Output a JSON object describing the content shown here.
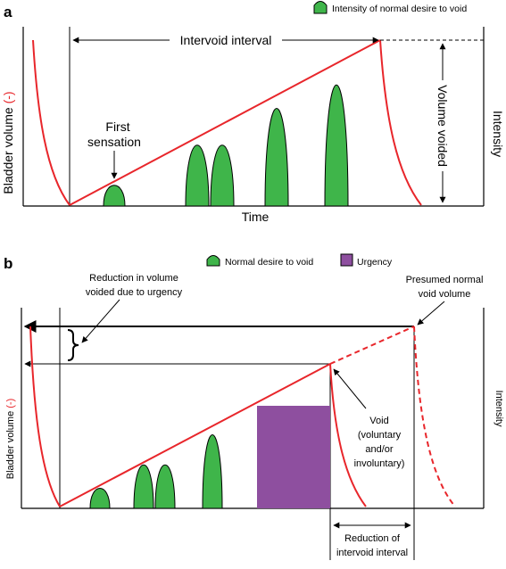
{
  "panel_a": {
    "letter": "a",
    "legend_label": "Intensity of normal desire to void",
    "y_axis_label": "Bladder volume",
    "y_axis_marker": "(-)",
    "x_axis_label": "Time",
    "right_axis_label": "Intensity",
    "intervoid_label": "Intervoid interval",
    "volume_voided_label": "Volume voided",
    "first_sensation_line1": "First",
    "first_sensation_line2": "sensation"
  },
  "panel_b": {
    "letter": "b",
    "legend_normal_label": "Normal desire to void",
    "legend_urgency_label": "Urgency",
    "y_axis_label": "Bladder volume",
    "y_axis_marker": "(-)",
    "right_axis_label": "Intensity",
    "reduction_volume_line1": "Reduction in volume",
    "reduction_volume_line2": "voided due to urgency",
    "presumed_line1": "Presumed normal",
    "presumed_line2": "void volume",
    "void_line1": "Void",
    "void_line2": "(voluntary",
    "void_line3": "and/or",
    "void_line4": "involuntary)",
    "reduction_interval_line1": "Reduction of",
    "reduction_interval_line2": "intervoid interval"
  },
  "colors": {
    "volume_line": "#e8262b",
    "desire_fill": "#3fb54a",
    "urgency_fill": "#8e4f9f",
    "outline": "#000000"
  }
}
